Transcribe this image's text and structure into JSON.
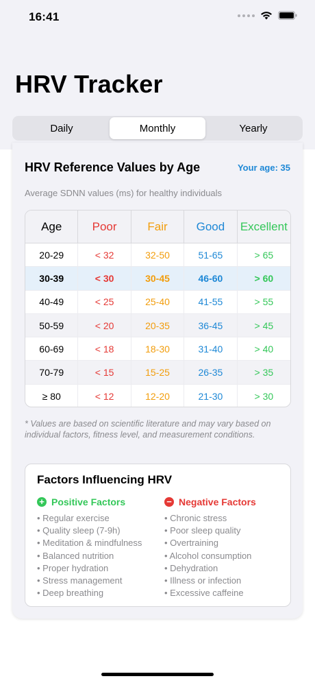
{
  "status_bar": {
    "time": "16:41"
  },
  "header": {
    "title": "HRV Tracker"
  },
  "tabs": [
    {
      "label": "Daily",
      "active": false
    },
    {
      "label": "Monthly",
      "active": true
    },
    {
      "label": "Yearly",
      "active": false
    }
  ],
  "reference": {
    "title": "HRV Reference Values by Age",
    "your_age": "Your age: 35",
    "subtitle": "Average SDNN values (ms) for healthy individuals",
    "columns": [
      "Age",
      "Poor",
      "Fair",
      "Good",
      "Excellent"
    ],
    "rows": [
      [
        "20-29",
        "< 32",
        "32-50",
        "51-65",
        "> 65"
      ],
      [
        "30-39",
        "< 30",
        "30-45",
        "46-60",
        "> 60"
      ],
      [
        "40-49",
        "< 25",
        "25-40",
        "41-55",
        "> 55"
      ],
      [
        "50-59",
        "< 20",
        "20-35",
        "36-45",
        "> 45"
      ],
      [
        "60-69",
        "< 18",
        "18-30",
        "31-40",
        "> 40"
      ],
      [
        "70-79",
        "< 15",
        "15-25",
        "26-35",
        "> 35"
      ],
      [
        "≥ 80",
        "< 12",
        "12-20",
        "21-30",
        "> 30"
      ]
    ],
    "highlighted_row": "30-39",
    "footnote": "* Values are based on scientific literature and may vary based on individual factors, fitness level, and measurement conditions."
  },
  "factors": {
    "title": "Factors Influencing HRV",
    "positive": {
      "label": "Positive Factors",
      "icon": "+",
      "items": [
        "Regular exercise",
        "Quality sleep (7-9h)",
        "Meditation & mindfulness",
        "Balanced nutrition",
        "Proper hydration",
        "Stress management",
        "Deep breathing"
      ]
    },
    "negative": {
      "label": "Negative Factors",
      "icon": "−",
      "items": [
        "Chronic stress",
        "Poor sleep quality",
        "Overtraining",
        "Alcohol consumption",
        "Dehydration",
        "Illness or infection",
        "Excessive caffeine"
      ]
    }
  },
  "colors": {
    "poor": "#e53935",
    "fair": "#f29d0c",
    "good": "#1e88d6",
    "excellent": "#34c759",
    "accent": "#1e88d6"
  }
}
